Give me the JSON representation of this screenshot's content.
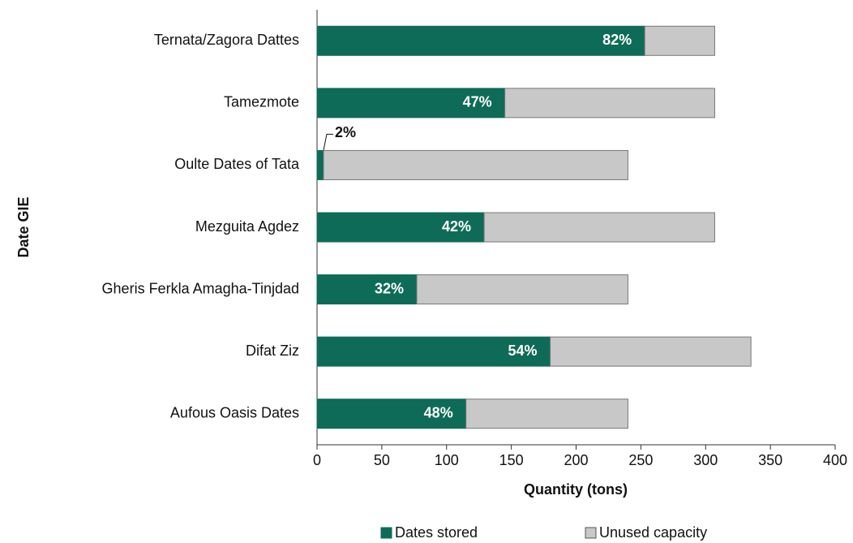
{
  "chart_data": {
    "type": "stacked-barh",
    "categories": [
      "Ternata/Zagora Dattes",
      "Tamezmote",
      "Oulte Dates of Tata",
      "Mezguita Agdez",
      "Gheris Ferkla Amagha-Tinjdad",
      "Difat Ziz",
      "Aufous Oasis Dates"
    ],
    "series": [
      {
        "name": "Dates stored",
        "color": "#0e6b57",
        "values": [
          253,
          145,
          5,
          129,
          77,
          180,
          115
        ],
        "data_labels": [
          "82%",
          "47%",
          "2%",
          "42%",
          "32%",
          "54%",
          "48%"
        ]
      },
      {
        "name": "Unused capacity",
        "color": "#c8c8c8",
        "values": [
          54,
          162,
          235,
          178,
          163,
          155,
          125
        ]
      }
    ],
    "xlabel": "Quantity (tons)",
    "ylabel": "Date GIE",
    "xlim": [
      0,
      400
    ],
    "xticks": [
      0,
      50,
      100,
      150,
      200,
      250,
      300,
      350,
      400
    ],
    "legend": "bottom"
  }
}
